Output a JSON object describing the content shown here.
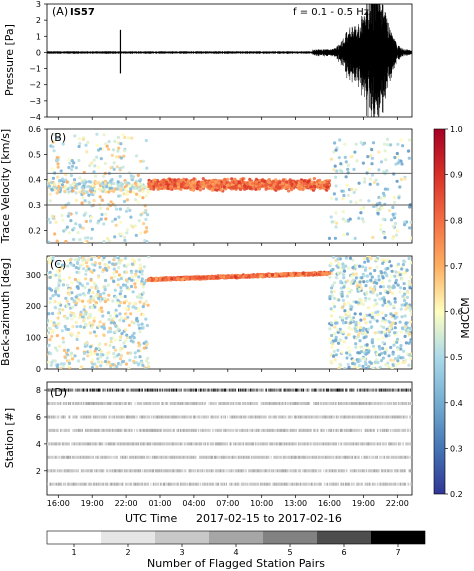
{
  "figure": {
    "colorbar_label": "MdCCM",
    "colorbar_ticks": [
      "0.2",
      "0.3",
      "0.4",
      "0.5",
      "0.6",
      "0.7",
      "0.8",
      "0.9",
      "1.0"
    ],
    "colorbar_range": [
      0.2,
      1.0
    ],
    "xaxis_ticks": [
      "16:00",
      "19:00",
      "22:00",
      "01:00",
      "04:00",
      "07:00",
      "10:00",
      "13:00",
      "16:00",
      "19:00",
      "22:00"
    ],
    "xaxis_label_left": "UTC Time",
    "xaxis_label_right": "2017-02-15 to 2017-02-16",
    "gray_bar_label": "Number of Flagged Station Pairs",
    "gray_bar_ticks": [
      "1",
      "2",
      "3",
      "4",
      "5",
      "6",
      "7"
    ],
    "gray_colors": [
      "#ffffff",
      "#e6e6e6",
      "#c8c8c8",
      "#a6a6a6",
      "#828282",
      "#4d4d4d",
      "#000000"
    ]
  },
  "chart_data": [
    {
      "panel": "A",
      "type": "line",
      "tag": "(A)",
      "station": "IS57",
      "annotation": "f = 0.1 - 0.5 Hz",
      "ylabel": "Pressure [Pa]",
      "ylim": [
        -4,
        3
      ],
      "yticks": [
        "3",
        "2",
        "1",
        "0",
        "−1",
        "−2",
        "−3",
        "−4"
      ],
      "x_time_range_hours": [
        15,
        31
      ],
      "events": [
        {
          "time": "21:30",
          "peak_pa": 1.4,
          "trough_pa": -1.3
        },
        {
          "time_range": "17:30-20:00",
          "peak_pa": 0.7,
          "trough_pa": -0.8
        },
        {
          "time_range": "17:00-24:00",
          "peak_pa": 3.0,
          "trough_pa": -3.2
        }
      ]
    },
    {
      "panel": "B",
      "type": "scatter",
      "tag": "(B)",
      "ylabel": "Trace Velocity [km/s]",
      "ylim": [
        0.15,
        0.6
      ],
      "yticks": [
        "0.6",
        "0.5",
        "0.4",
        "0.3",
        "0.2"
      ],
      "reference_lines_kms": [
        0.3,
        0.425
      ],
      "coherent_signal": {
        "start": "00:00",
        "end": "16:00",
        "trace_velocity_kms": 0.38,
        "mdccm": 0.9
      }
    },
    {
      "panel": "C",
      "type": "scatter",
      "tag": "(C)",
      "ylabel": "Back-azimuth [deg]",
      "ylim": [
        0,
        360
      ],
      "yticks": [
        "300",
        "200",
        "100",
        "0"
      ],
      "coherent_signal": {
        "start": "00:00",
        "end": "16:00",
        "back_azimuth_deg_start": 285,
        "back_azimuth_deg_end": 305,
        "mdccm": 0.9
      }
    },
    {
      "panel": "D",
      "type": "scatter",
      "tag": "(D)",
      "ylabel": "Station [#]",
      "ylim": [
        0.2,
        8.6
      ],
      "yticks": [
        "8",
        "6",
        "4",
        "2"
      ],
      "stations": [
        1,
        2,
        3,
        4,
        5,
        6,
        7,
        8
      ]
    }
  ]
}
